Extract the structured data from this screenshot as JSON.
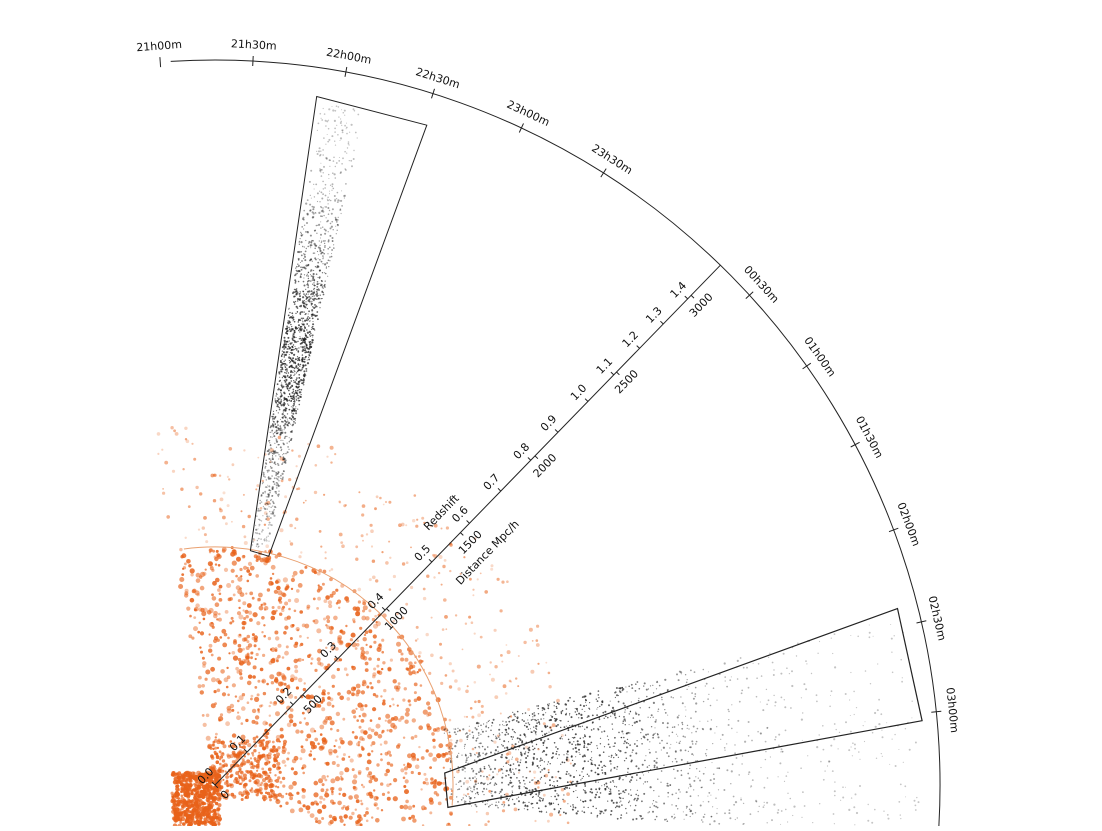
{
  "diagram": {
    "ra_labels": [
      "21h00m",
      "21h30m",
      "22h00m",
      "22h30m",
      "23h00m",
      "23h30m",
      "00h30m",
      "01h00m",
      "01h30m",
      "02h00m",
      "02h30m",
      "03h00m"
    ],
    "axis": {
      "redshift_title": "Redshift",
      "distance_title": "Distance Mpc/h",
      "redshift_ticks": [
        "0.0",
        "0.1",
        "0.2",
        "0.3",
        "0.4",
        "0.5",
        "0.6",
        "0.7",
        "0.8",
        "0.9",
        "1.0",
        "1.1",
        "1.2",
        "1.3",
        "1.4"
      ],
      "distance_ticks": [
        "0",
        "500",
        "1000",
        "1500",
        "2000",
        "2500",
        "3000"
      ]
    },
    "colors": {
      "outline": "#222222",
      "near_survey": "#e8621a",
      "near_boundary": "#e9a070",
      "far_survey": "#1a1a1a"
    }
  }
}
